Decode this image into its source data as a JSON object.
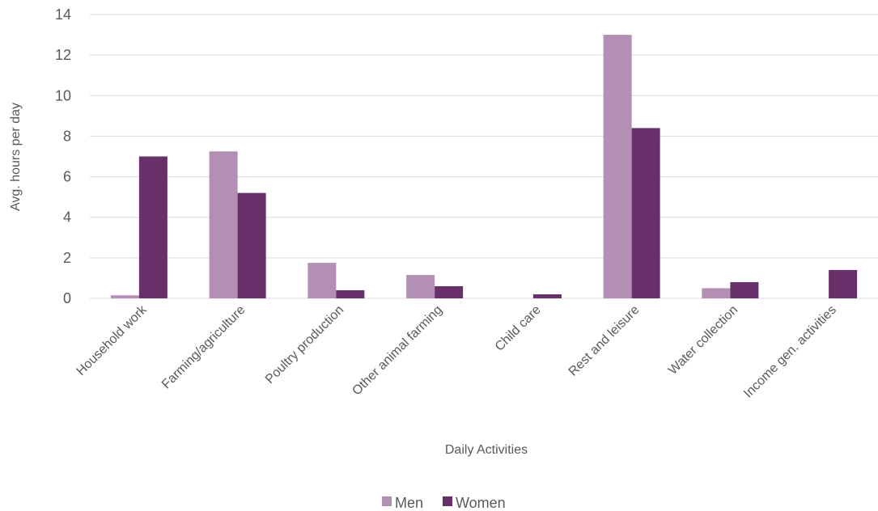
{
  "chart_data": {
    "type": "bar",
    "categories": [
      "Household work",
      "Farming/agriculture",
      "Poultry production",
      "Other animal farming",
      "Child care",
      "Rest and leisure",
      "Water collection",
      "Income gen. activities"
    ],
    "series": [
      {
        "name": "Men",
        "color": "#b28fb3",
        "values": [
          0.15,
          7.25,
          1.75,
          1.15,
          0,
          13.0,
          0.5,
          0
        ]
      },
      {
        "name": "Women",
        "color": "#67306b",
        "values": [
          7.0,
          5.2,
          0.4,
          0.6,
          0.2,
          8.4,
          0.8,
          1.4
        ]
      }
    ],
    "xlabel": "Daily Activities",
    "ylabel": "Avg. hours per day",
    "ylim": [
      0,
      14
    ],
    "yticks": [
      "0",
      "2",
      "4",
      "6",
      "8",
      "10",
      "12",
      "14"
    ],
    "grid": true,
    "legend": "bottom-center"
  }
}
